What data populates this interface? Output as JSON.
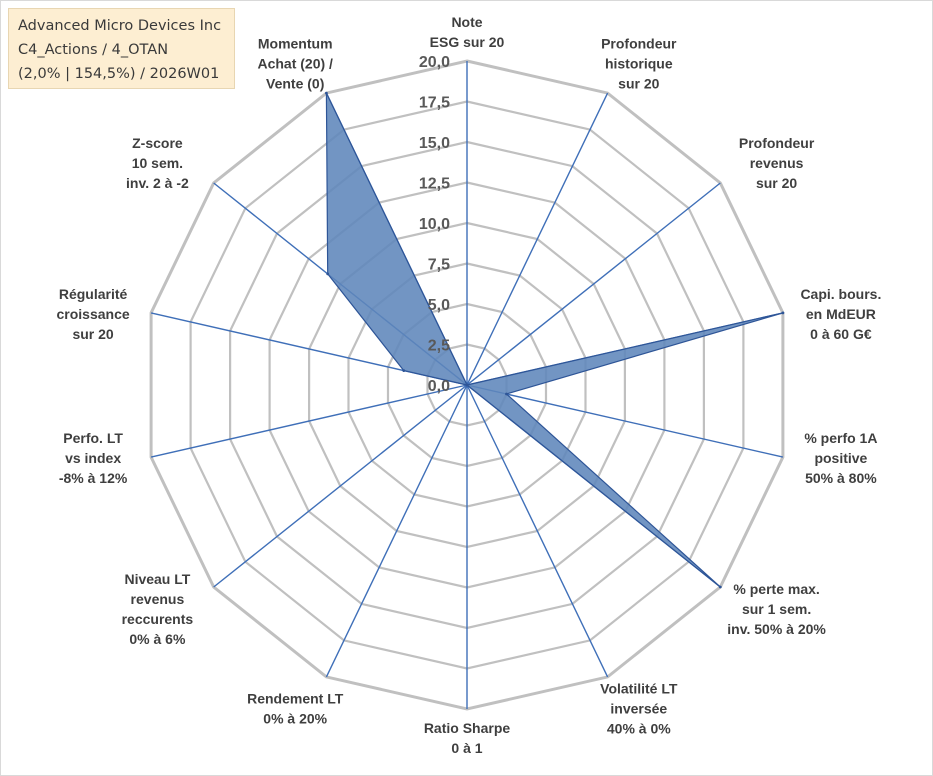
{
  "title_lines": [
    "Advanced Micro Devices Inc",
    "C4_Actions / 4_OTAN",
    "(2,0% | 154,5%) / 2026W01"
  ],
  "colors": {
    "grid": "#c0c0c0",
    "spoke": "#3f6fb8",
    "fill": "#5e86bb",
    "fill_stroke": "#2e5597",
    "title_bg": "#fdeed2"
  },
  "chart_data": {
    "type": "radar",
    "rmax": 20,
    "tick_values": [
      0,
      2.5,
      5,
      7.5,
      10,
      12.5,
      15,
      17.5,
      20
    ],
    "tick_labels": [
      "0,0",
      "2,5",
      "5,0",
      "7,5",
      "10,0",
      "12,5",
      "15,0",
      "17,5",
      "20,0"
    ],
    "axes": [
      {
        "lines": [
          "Note",
          "ESG sur 20"
        ]
      },
      {
        "lines": [
          "Profondeur",
          "historique",
          "sur 20"
        ]
      },
      {
        "lines": [
          "Profondeur",
          "revenus",
          "sur 20"
        ]
      },
      {
        "lines": [
          "Capi. bours.",
          "en MdEUR",
          "0 à 60 G€"
        ]
      },
      {
        "lines": [
          "% perfo 1A",
          "positive",
          "50% à 80%"
        ]
      },
      {
        "lines": [
          "% perte max.",
          "sur 1 sem.",
          "inv. 50% à 20%"
        ]
      },
      {
        "lines": [
          "Volatilité LT",
          "inversée",
          "40% à 0%"
        ]
      },
      {
        "lines": [
          "Ratio Sharpe",
          "0 à 1"
        ]
      },
      {
        "lines": [
          "Rendement LT",
          "0% à 20%"
        ]
      },
      {
        "lines": [
          "Niveau LT",
          "revenus",
          "reccurents",
          "0% à 6%"
        ]
      },
      {
        "lines": [
          "Perfo. LT",
          "vs index",
          "-8% à 12%"
        ]
      },
      {
        "lines": [
          "Régularité",
          "croissance",
          "sur 20"
        ]
      },
      {
        "lines": [
          "Z-score",
          "10 sem.",
          "inv. 2 à -2"
        ]
      },
      {
        "lines": [
          "Momentum",
          "Achat (20) /",
          "Vente (0)"
        ]
      }
    ],
    "series": [
      {
        "values": [
          0,
          0,
          0,
          20,
          2.5,
          20,
          0,
          0,
          0,
          0,
          0,
          4,
          11,
          20
        ]
      }
    ]
  }
}
